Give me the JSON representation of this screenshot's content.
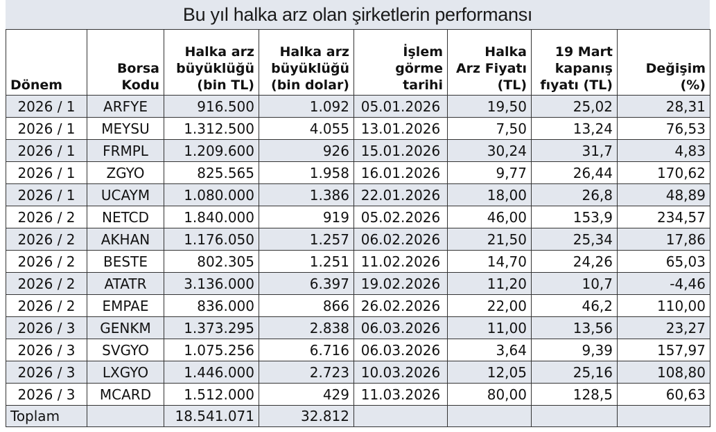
{
  "title": "Bu yıl halka arz olan şirketlerin performansı",
  "headers": {
    "donem": [
      "Dönem"
    ],
    "borsa": [
      "Borsa",
      "Kodu"
    ],
    "buyukluk_tl": [
      "Halka arz",
      "büyüklüğü",
      "(bin TL)"
    ],
    "buyukluk_usd": [
      "Halka arz",
      "büyüklüğü",
      "(bin dolar)"
    ],
    "islem": [
      "İşlem",
      "görme",
      "tarihi"
    ],
    "fiyat": [
      "Halka",
      "Arz Fiyatı",
      "(TL)"
    ],
    "kapanis": [
      "19 Mart",
      "kapanış",
      "fıyatı (TL)"
    ],
    "degisim": [
      "Değişim (%)"
    ]
  },
  "rows": [
    [
      "2026 / 1",
      "ARFYE",
      "916.500",
      "1.092",
      "05.01.2026",
      "19,50",
      "25,02",
      "28,31"
    ],
    [
      "2026 / 1",
      "MEYSU",
      "1.312.500",
      "4.055",
      "13.01.2026",
      "7,50",
      "13,24",
      "76,53"
    ],
    [
      "2026 / 1",
      "FRMPL",
      "1.209.600",
      "926",
      "15.01.2026",
      "30,24",
      "31,7",
      "4,83"
    ],
    [
      "2026 / 1",
      "ZGYO",
      "825.565",
      "1.958",
      "16.01.2026",
      "9,77",
      "26,44",
      "170,62"
    ],
    [
      "2026 / 1",
      "UCAYM",
      "1.080.000",
      "1.386",
      "22.01.2026",
      "18,00",
      "26,8",
      "48,89"
    ],
    [
      "2026 / 2",
      "NETCD",
      "1.840.000",
      "919",
      "05.02.2026",
      "46,00",
      "153,9",
      "234,57"
    ],
    [
      "2026 / 2",
      "AKHAN",
      "1.176.050",
      "1.257",
      "06.02.2026",
      "21,50",
      "25,34",
      "17,86"
    ],
    [
      "2026 / 2",
      "BESTE",
      "802.305",
      "1.251",
      "11.02.2026",
      "14,70",
      "24,26",
      "65,03"
    ],
    [
      "2026 / 2",
      "ATATR",
      "3.136.000",
      "6.397",
      "19.02.2026",
      "11,20",
      "10,7",
      "-4,46"
    ],
    [
      "2026 / 2",
      "EMPAE",
      "836.000",
      "866",
      "26.02.2026",
      "22,00",
      "46,2",
      "110,00"
    ],
    [
      "2026 / 3",
      "GENKM",
      "1.373.295",
      "2.838",
      "06.03.2026",
      "11,00",
      "13,56",
      "23,27"
    ],
    [
      "2026 / 3",
      "SVGYO",
      "1.075.256",
      "6.716",
      "06.03.2026",
      "3,64",
      "9,39",
      "157,97"
    ],
    [
      "2026 / 3",
      "LXGYO",
      "1.446.000",
      "2.723",
      "10.03.2026",
      "12,05",
      "25,16",
      "108,80"
    ],
    [
      "2026 / 3",
      "MCARD",
      "1.512.000",
      "429",
      "11.03.2026",
      "80,00",
      "128,5",
      "60,63"
    ]
  ],
  "total": {
    "label": "Toplam",
    "buyukluk_tl": "18.541.071",
    "buyukluk_usd": "32.812"
  }
}
